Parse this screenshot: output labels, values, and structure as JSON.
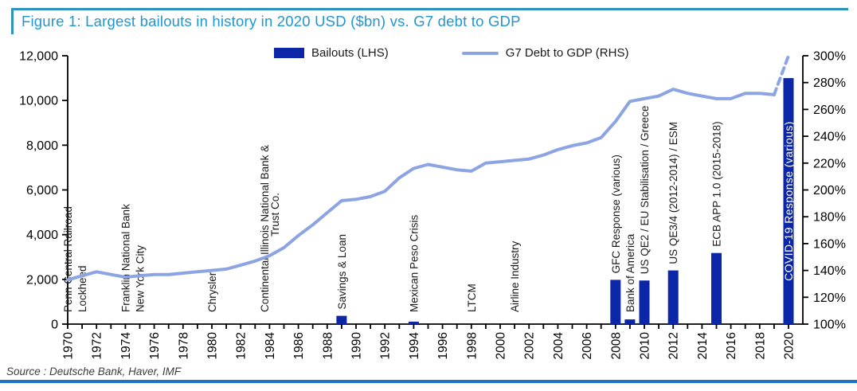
{
  "figure": {
    "title": "Figure 1: Largest bailouts in history in 2020 USD ($bn) vs. G7 debt to GDP",
    "source": "Source : Deutsche Bank, Haver, IMF"
  },
  "colors": {
    "bar": "#0B26A6",
    "line": "#8DA4E4",
    "title": "#2097CE",
    "top_rule": "#2E93BE",
    "bottom_rule": "#1C75BE",
    "axis": "#000000",
    "annotation": "#1a1a1a",
    "covid_label": "#FFFFFF"
  },
  "legend": {
    "items": [
      {
        "label": "Bailouts (LHS)",
        "swatch": "bar"
      },
      {
        "label": "G7 Debt to GDP (RHS)",
        "swatch": "line"
      }
    ]
  },
  "chart_data": {
    "type": "combo bar+line",
    "title": "Figure 1: Largest bailouts in history in 2020 USD ($bn) vs. G7 debt to GDP",
    "x_axis": {
      "start": 1970,
      "end": 2020,
      "tick_every_years": 1,
      "label_every_years": 2,
      "tick_labels": [
        "1970",
        "1972",
        "1974",
        "1976",
        "1978",
        "1980",
        "1982",
        "1984",
        "1986",
        "1988",
        "1990",
        "1992",
        "1994",
        "1996",
        "1998",
        "2000",
        "2002",
        "2004",
        "2006",
        "2008",
        "2010",
        "2012",
        "2014",
        "2016",
        "2018",
        "2020"
      ]
    },
    "left_axis": {
      "min": 0,
      "max": 12000,
      "step": 2000,
      "tick_labels": [
        "0",
        "2,000",
        "4,000",
        "6,000",
        "8,000",
        "10,000",
        "12,000"
      ]
    },
    "right_axis": {
      "min": 100,
      "max": 300,
      "step": 20,
      "tick_labels": [
        "100%",
        "120%",
        "140%",
        "160%",
        "180%",
        "200%",
        "220%",
        "240%",
        "260%",
        "280%",
        "300%"
      ]
    },
    "bars": {
      "name": "Bailouts (LHS)",
      "axis": "left",
      "unit": "2020 USD ($bn)",
      "points": [
        {
          "year": 1970,
          "label": "Penn Central Railroad",
          "value": 5
        },
        {
          "year": 1971,
          "label": "Lockheed",
          "value": 5
        },
        {
          "year": 1974,
          "label": "Franklin National Bank",
          "value": 5
        },
        {
          "year": 1975,
          "label": "New York City",
          "value": 8
        },
        {
          "year": 1980,
          "label": "Chrysler",
          "value": 5
        },
        {
          "year": 1984,
          "label": "Continental Illinois National Bank & Trust Co.",
          "label_lines": [
            "Continental Illinois National Bank &",
            "Trust Co."
          ],
          "value": 10
        },
        {
          "year": 1989,
          "label": "Savings & Loan",
          "value": 370
        },
        {
          "year": 1994,
          "label": "Mexican Peso Crisis",
          "value": 110
        },
        {
          "year": 1998,
          "label": "LTCM",
          "value": 5
        },
        {
          "year": 2001,
          "label": "Airline Industry",
          "value": 15
        },
        {
          "year": 2008,
          "label": "GFC Response (various)",
          "value": 1980
        },
        {
          "year": 2009,
          "label": "Bank of America",
          "value": 210
        },
        {
          "year": 2010,
          "label": "US QE2 / EU Stabilisation / Greece",
          "value": 1950
        },
        {
          "year": 2012,
          "label": "US QE3/4 (2012-2014) / ESM",
          "value": 2400
        },
        {
          "year": 2015,
          "label": "ECB APP 1.0 (2015-2018)",
          "value": 3180
        },
        {
          "year": 2020,
          "label": "COVID-19 Response (various)",
          "value": 11000,
          "label_inside": true
        }
      ]
    },
    "line": {
      "name": "G7 Debt to GDP (RHS)",
      "axis": "right",
      "unit": "percent",
      "dashed_from_year": 2019,
      "years": [
        1970,
        1971,
        1972,
        1973,
        1974,
        1975,
        1976,
        1977,
        1978,
        1979,
        1980,
        1981,
        1982,
        1983,
        1984,
        1985,
        1986,
        1987,
        1988,
        1989,
        1990,
        1991,
        1992,
        1993,
        1994,
        1995,
        1996,
        1997,
        1998,
        1999,
        2000,
        2001,
        2002,
        2003,
        2004,
        2005,
        2006,
        2007,
        2008,
        2009,
        2010,
        2011,
        2012,
        2013,
        2014,
        2015,
        2016,
        2017,
        2018,
        2019,
        2020
      ],
      "values": [
        133,
        136,
        139,
        137,
        135,
        136,
        137,
        137,
        138,
        139,
        140,
        141,
        144,
        147,
        151,
        157,
        166,
        174,
        183,
        192,
        193,
        195,
        199,
        209,
        216,
        219,
        217,
        215,
        214,
        220,
        221,
        222,
        223,
        226,
        230,
        233,
        235,
        239,
        251,
        266,
        268,
        270,
        275,
        272,
        270,
        268,
        268,
        272,
        272,
        271,
        300
      ]
    }
  }
}
